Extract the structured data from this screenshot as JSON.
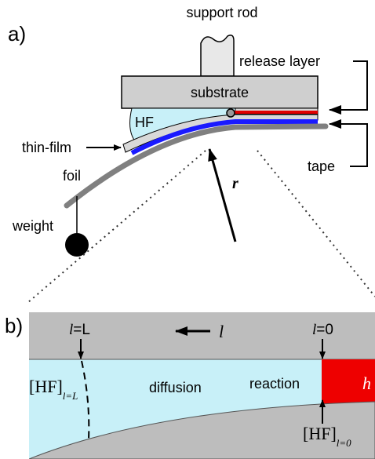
{
  "panel_a": {
    "label": "a)",
    "support_rod": "support rod",
    "release_layer": "release layer",
    "substrate": "substrate",
    "hf": "HF",
    "thin_film": "thin-film",
    "foil": "foil",
    "tape": "tape",
    "radius": "r",
    "weight": "weight"
  },
  "panel_b": {
    "label": "b)",
    "l_end": {
      "var": "l",
      "rest": "=L"
    },
    "direction": "l",
    "l_start": {
      "var": "l",
      "rest": "=0"
    },
    "hf_end": {
      "base": "[HF]",
      "sub_var": "l",
      "sub_rest": "=L"
    },
    "diffusion": "diffusion",
    "reaction": "reaction",
    "thickness": "h",
    "hf_start": {
      "base": "[HF]",
      "sub_var": "l",
      "sub_rest": "=0"
    }
  }
}
